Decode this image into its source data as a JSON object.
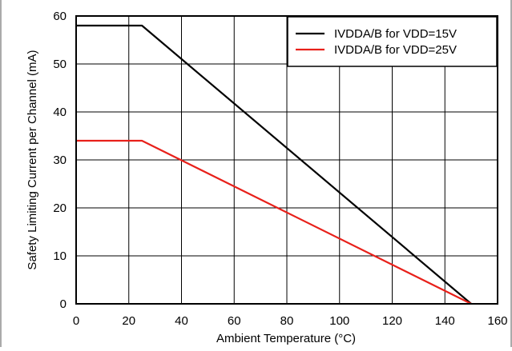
{
  "chart_data": {
    "type": "line",
    "xlabel": "Ambient Temperature (°C)",
    "ylabel": "Safety Limiting Current per Channel (mA)",
    "xlim": [
      0,
      160
    ],
    "ylim": [
      0,
      60
    ],
    "x_ticks": [
      0,
      20,
      40,
      60,
      80,
      100,
      120,
      140,
      160
    ],
    "y_ticks": [
      0,
      10,
      20,
      30,
      40,
      50,
      60
    ],
    "grid": true,
    "legend_position": "top-right",
    "series": [
      {
        "name": "IVDDA/B for VDD=15V",
        "color": "#000000",
        "x": [
          0,
          25,
          150
        ],
        "y": [
          58,
          58,
          0
        ]
      },
      {
        "name": "IVDDA/B for VDD=25V",
        "color": "#e8201a",
        "x": [
          0,
          25,
          150
        ],
        "y": [
          34,
          34,
          0
        ]
      }
    ]
  }
}
